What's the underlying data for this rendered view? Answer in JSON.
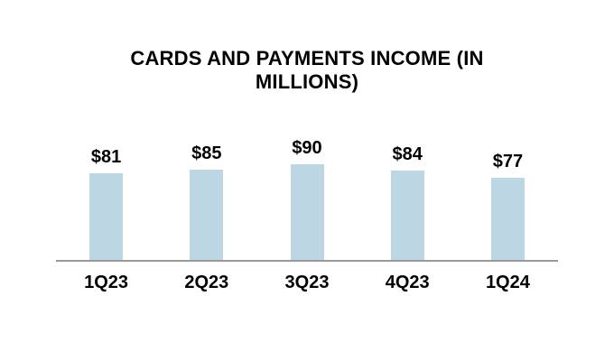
{
  "chart_data": {
    "type": "bar",
    "title": "CARDS AND PAYMENTS INCOME (IN MILLIONS)",
    "categories": [
      "1Q23",
      "2Q23",
      "3Q23",
      "4Q23",
      "1Q24"
    ],
    "values": [
      81,
      85,
      90,
      84,
      77
    ],
    "value_labels": [
      "$81",
      "$85",
      "$90",
      "$84",
      "$77"
    ],
    "xlabel": "",
    "ylabel": "",
    "ylim": [
      0,
      100
    ],
    "grid": false,
    "legend": false,
    "bar_color": "#BCD6E4",
    "axis_line_color": "#999999",
    "text_color": "#000000",
    "background_color": "#FFFFFF"
  }
}
